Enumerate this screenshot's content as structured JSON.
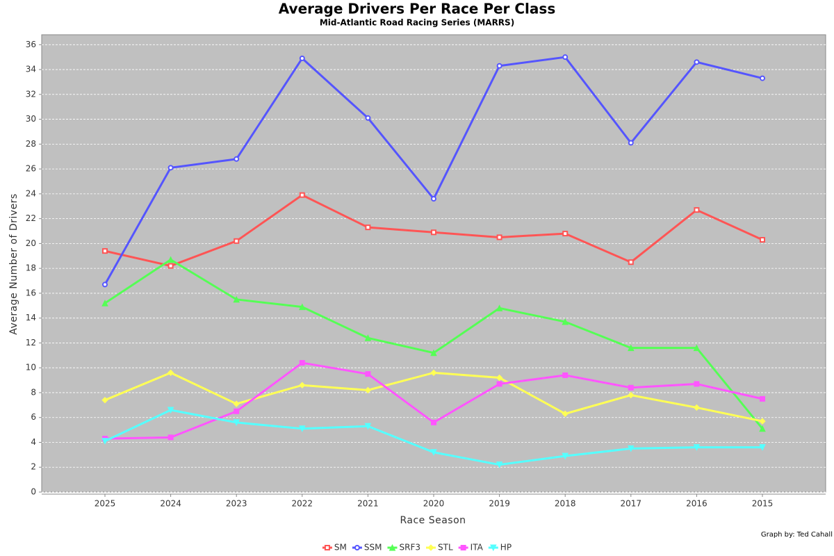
{
  "chart_data": {
    "type": "line",
    "title": "Average Drivers Per Race Per Class",
    "subtitle": "Mid-Atlantic Road Racing Series (MARRS)",
    "x_label": "Race Season",
    "y_label": "Average Number of Drivers",
    "annotation": "Graph by: Ted Cahall",
    "categories": [
      "2025",
      "2024",
      "2023",
      "2022",
      "2021",
      "2020",
      "2019",
      "2018",
      "2017",
      "2016",
      "2015"
    ],
    "ylim": [
      0,
      36.8
    ],
    "yticks": [
      0,
      2,
      4,
      6,
      8,
      10,
      12,
      14,
      16,
      18,
      20,
      22,
      24,
      26,
      28,
      30,
      32,
      34,
      36
    ],
    "grid": true,
    "legend": "bottom",
    "series": [
      {
        "name": "SM",
        "color": "#ff5555",
        "marker": "square",
        "values": [
          19.4,
          18.2,
          20.2,
          23.9,
          21.3,
          20.9,
          20.5,
          20.8,
          18.5,
          22.7,
          20.3
        ]
      },
      {
        "name": "SSM",
        "color": "#5555ff",
        "marker": "circle",
        "values": [
          16.7,
          26.1,
          26.8,
          34.9,
          30.1,
          23.6,
          34.3,
          35.0,
          28.1,
          34.6,
          33.3
        ]
      },
      {
        "name": "SRF3",
        "color": "#55ff55",
        "marker": "triangle-up",
        "values": [
          15.2,
          18.7,
          15.5,
          14.9,
          12.4,
          11.2,
          14.8,
          13.7,
          11.6,
          11.6,
          5.1
        ]
      },
      {
        "name": "STL",
        "color": "#ffff55",
        "marker": "diamond",
        "values": [
          7.4,
          9.6,
          7.1,
          8.6,
          8.2,
          9.6,
          9.2,
          6.3,
          7.8,
          6.8,
          5.7
        ]
      },
      {
        "name": "ITA",
        "color": "#ff55ff",
        "marker": "filled-square",
        "values": [
          4.3,
          4.4,
          6.5,
          10.4,
          9.5,
          5.6,
          8.7,
          9.4,
          8.4,
          8.7,
          7.5
        ]
      },
      {
        "name": "HP",
        "color": "#55ffff",
        "marker": "triangle-down",
        "values": [
          4.1,
          6.6,
          5.6,
          5.1,
          5.3,
          3.2,
          2.2,
          2.9,
          3.5,
          3.6,
          3.6
        ]
      }
    ]
  }
}
